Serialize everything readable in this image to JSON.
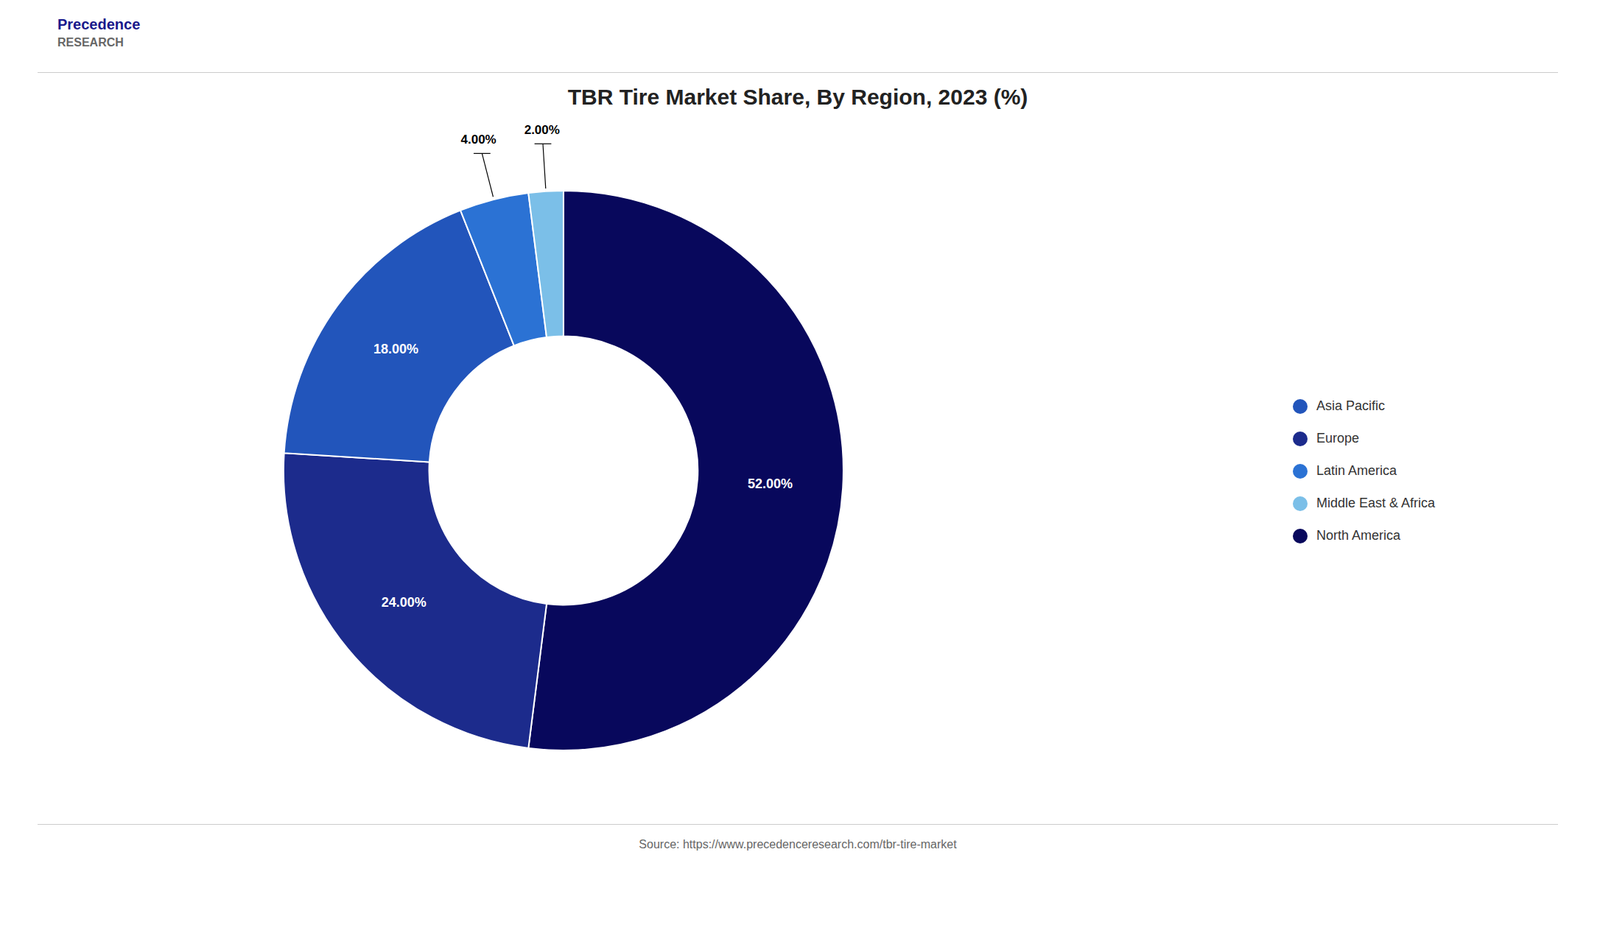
{
  "chart_data": {
    "type": "pie",
    "title": "TBR Tire Market Share, By Region, 2023 (%)",
    "categories": [
      "North America",
      "Europe",
      "Asia Pacific",
      "Latin America",
      "Middle East & Africa"
    ],
    "values": [
      52.0,
      24.0,
      18.0,
      4.0,
      2.0
    ],
    "value_labels": [
      "52.00%",
      "24.00%",
      "18.00%",
      "4.00%",
      "2.00%"
    ],
    "colors": [
      "#08085c",
      "#1c2b8c",
      "#2255bb",
      "#2b72d4",
      "#7bbfe8"
    ],
    "data_labels": true,
    "legend": "right",
    "annotations": [
      "Precedence",
      "RESEARCH",
      "Source: https://www.precedenceresearch.com/tbr-tire-market"
    ]
  }
}
